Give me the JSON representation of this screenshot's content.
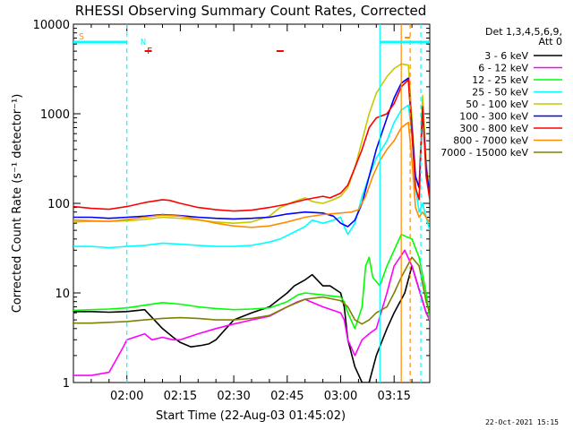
{
  "chart_data": {
    "type": "line",
    "title": "RHESSI Observing Summary Count Rates, Corrected",
    "xlabel": "Start Time (22-Aug-03 01:45:02)",
    "ylabel": "Corrected Count Rate (s⁻¹ detector⁻¹)",
    "yscale": "log",
    "x_unit": "minutes since 01:45:02",
    "xlim": [
      0,
      100
    ],
    "ylim": [
      1,
      10000
    ],
    "x_ticks": [
      {
        "label": "02:00",
        "value": 15
      },
      {
        "label": "02:15",
        "value": 30
      },
      {
        "label": "02:30",
        "value": 45
      },
      {
        "label": "02:45",
        "value": 60
      },
      {
        "label": "03:00",
        "value": 75
      },
      {
        "label": "03:15",
        "value": 90
      }
    ],
    "y_ticks": [
      {
        "label": "1",
        "value": 1
      },
      {
        "label": "10",
        "value": 10
      },
      {
        "label": "100",
        "value": 100
      },
      {
        "label": "1000",
        "value": 1000
      },
      {
        "label": "10000",
        "value": 10000
      }
    ],
    "legend_header": [
      "Det 1,3,4,5,6,9,",
      "Att 0"
    ],
    "series": [
      {
        "name": "3 - 6 keV",
        "color": "#000000",
        "x": [
          0,
          5,
          10,
          15,
          20,
          25,
          28,
          30,
          33,
          36,
          38,
          40,
          45,
          50,
          55,
          60,
          62,
          65,
          67,
          70,
          72,
          75,
          76,
          77,
          79,
          81,
          83,
          85,
          88,
          90,
          93,
          95,
          99,
          100
        ],
        "y": [
          6.2,
          6.2,
          6.1,
          6.2,
          6.5,
          4,
          3.2,
          2.8,
          2.5,
          2.6,
          2.7,
          3,
          5,
          6,
          7,
          10,
          12,
          14,
          16,
          12,
          12,
          10,
          7,
          3,
          1.5,
          1,
          1,
          2,
          4,
          6,
          10,
          20,
          6,
          5
        ]
      },
      {
        "name": "6 - 12 keV",
        "color": "#ff00ff",
        "x": [
          0,
          5,
          10,
          12,
          14,
          15,
          20,
          22,
          25,
          28,
          30,
          35,
          40,
          45,
          50,
          55,
          60,
          63,
          65,
          70,
          75,
          76,
          77,
          79,
          81,
          83,
          85,
          88,
          90,
          93,
          95,
          99,
          100
        ],
        "y": [
          1.2,
          1.2,
          1.3,
          1.8,
          2.5,
          3,
          3.5,
          3,
          3.2,
          3,
          3,
          3.5,
          4,
          4.5,
          5,
          5.5,
          7,
          8,
          8.5,
          7,
          6,
          5,
          3,
          2,
          3,
          3.5,
          4,
          10,
          20,
          30,
          20,
          6,
          5
        ]
      },
      {
        "name": "12 - 25 keV",
        "color": "#00ff00",
        "x": [
          0,
          5,
          10,
          15,
          20,
          25,
          30,
          35,
          40,
          45,
          50,
          55,
          60,
          63,
          65,
          70,
          75,
          76,
          77,
          79,
          81,
          82,
          83,
          84,
          86,
          88,
          90,
          92,
          95,
          97,
          99,
          100
        ],
        "y": [
          6.4,
          6.5,
          6.6,
          6.8,
          7.3,
          7.8,
          7.5,
          7,
          6.7,
          6.5,
          6.6,
          6.8,
          8,
          9.5,
          10,
          9.5,
          9,
          8,
          6,
          4,
          7,
          20,
          25,
          15,
          12,
          20,
          30,
          45,
          40,
          25,
          10,
          5
        ]
      },
      {
        "name": "25 - 50 keV",
        "color": "#00ffff",
        "x": [
          0,
          5,
          10,
          15,
          20,
          25,
          30,
          35,
          40,
          45,
          50,
          55,
          58,
          62,
          65,
          67,
          70,
          73,
          75,
          76,
          77,
          79,
          81,
          83,
          85,
          88,
          90,
          92,
          94,
          95,
          96,
          97,
          98,
          99,
          100
        ],
        "y": [
          33,
          33,
          32,
          33,
          34,
          36,
          35,
          34,
          33,
          33,
          34,
          37,
          40,
          48,
          55,
          65,
          60,
          65,
          70,
          55,
          45,
          60,
          120,
          200,
          320,
          500,
          800,
          1100,
          1250,
          600,
          150,
          80,
          100,
          70,
          50
        ]
      },
      {
        "name": "50 - 100 keV",
        "color": "#c8c800",
        "x": [
          0,
          5,
          10,
          15,
          20,
          25,
          30,
          35,
          40,
          45,
          50,
          55,
          58,
          62,
          65,
          67,
          70,
          73,
          75,
          77,
          79,
          81,
          83,
          85,
          88,
          90,
          92,
          94,
          95,
          96,
          97,
          98,
          99,
          100
        ],
        "y": [
          62,
          63,
          63,
          64,
          66,
          70,
          68,
          65,
          62,
          60,
          62,
          72,
          90,
          105,
          115,
          105,
          100,
          110,
          120,
          150,
          250,
          500,
          1000,
          1700,
          2600,
          3200,
          3600,
          3500,
          900,
          200,
          150,
          1600,
          300,
          120
        ]
      },
      {
        "name": "100 - 300 keV",
        "color": "#0000ff",
        "x": [
          0,
          5,
          10,
          15,
          20,
          25,
          30,
          35,
          40,
          45,
          50,
          55,
          60,
          65,
          70,
          73,
          75,
          77,
          79,
          81,
          83,
          85,
          88,
          90,
          92,
          94,
          95,
          96,
          97,
          98,
          99,
          100
        ],
        "y": [
          70,
          70,
          68,
          70,
          72,
          75,
          73,
          70,
          68,
          67,
          68,
          70,
          76,
          80,
          78,
          72,
          60,
          55,
          65,
          100,
          200,
          400,
          900,
          1500,
          2200,
          2500,
          700,
          200,
          150,
          1100,
          250,
          120
        ]
      },
      {
        "name": "300 - 800 keV",
        "color": "#ff0000",
        "x": [
          0,
          5,
          10,
          15,
          20,
          25,
          27,
          30,
          35,
          40,
          45,
          50,
          55,
          60,
          65,
          70,
          72,
          75,
          77,
          79,
          81,
          83,
          85,
          88,
          90,
          92,
          94,
          95,
          96,
          97,
          98,
          99,
          100
        ],
        "y": [
          92,
          88,
          86,
          92,
          102,
          110,
          108,
          100,
          90,
          85,
          82,
          84,
          90,
          98,
          110,
          120,
          115,
          130,
          160,
          250,
          400,
          700,
          900,
          1000,
          1300,
          2000,
          2400,
          600,
          150,
          110,
          1200,
          200,
          110
        ]
      },
      {
        "name": "800 - 7000 keV",
        "color": "#ff8c00",
        "x": [
          0,
          5,
          10,
          15,
          20,
          25,
          30,
          35,
          40,
          45,
          50,
          55,
          60,
          65,
          70,
          75,
          78,
          80,
          82,
          84,
          86,
          88,
          90,
          92,
          94,
          95,
          96,
          97,
          98,
          99,
          100
        ],
        "y": [
          65,
          64,
          63,
          66,
          70,
          74,
          72,
          66,
          60,
          56,
          54,
          56,
          62,
          70,
          75,
          78,
          80,
          85,
          120,
          200,
          300,
          400,
          500,
          700,
          800,
          300,
          90,
          70,
          80,
          70,
          60
        ]
      },
      {
        "name": "7000 - 15000 keV",
        "color": "#808000",
        "x": [
          0,
          5,
          10,
          15,
          20,
          25,
          30,
          35,
          40,
          45,
          50,
          55,
          60,
          65,
          70,
          75,
          77,
          79,
          81,
          83,
          85,
          88,
          90,
          92,
          95,
          97,
          99,
          100
        ],
        "y": [
          4.6,
          4.6,
          4.7,
          4.8,
          5,
          5.2,
          5.3,
          5.2,
          5,
          5,
          5.2,
          5.6,
          7,
          8.5,
          9,
          8.2,
          7,
          5,
          4.5,
          5,
          6,
          7,
          10,
          15,
          25,
          20,
          8,
          6
        ]
      }
    ],
    "state_flags": [
      {
        "label": "S",
        "color": "#ff8c00"
      },
      {
        "label": "N",
        "color": "#00ffff"
      },
      {
        "label": "F",
        "color": "#ff0000"
      }
    ],
    "state_bars": [
      {
        "name": "night",
        "color": "#00ffff",
        "x0": 0,
        "x1": 15
      },
      {
        "name": "night",
        "color": "#00ffff",
        "x0": 86,
        "x1": 100
      },
      {
        "name": "flare",
        "color": "#ff0000",
        "x0": 20,
        "x1": 22
      },
      {
        "name": "flare",
        "color": "#ff0000",
        "x0": 57,
        "x1": 59
      },
      {
        "name": "saa",
        "color": "#ff8c00",
        "x0": 93,
        "x1": 94.5
      }
    ],
    "vlines": [
      {
        "x": 15,
        "color": "#00ffff",
        "style": "dashed"
      },
      {
        "x": 86,
        "color": "#00ffff",
        "style": "solid"
      },
      {
        "x": 97.5,
        "color": "#00ffff",
        "style": "dashed"
      },
      {
        "x": 92,
        "color": "#ff8c00",
        "style": "solid"
      },
      {
        "x": 94.5,
        "color": "#ff8c00",
        "style": "dashed"
      }
    ]
  },
  "footer": {
    "timestamp": "22-Oct-2021 15:15"
  }
}
